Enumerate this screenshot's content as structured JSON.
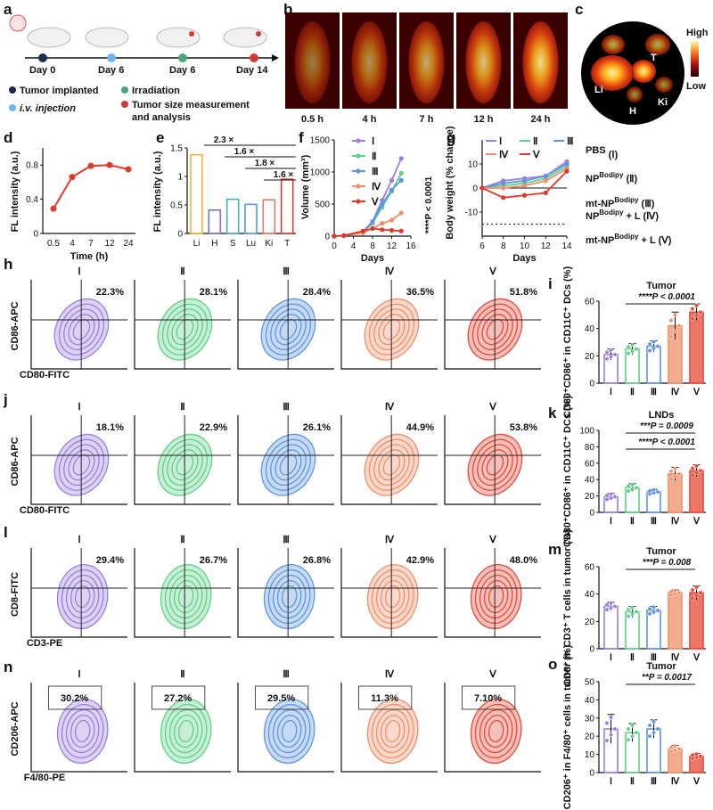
{
  "panels": {
    "a": {
      "letter": "a",
      "days": [
        "Day 0",
        "Day 6",
        "Day 6",
        "Day 14"
      ],
      "legend": [
        "Tumor implanted",
        "i.v. injection",
        "Irradiation",
        "Tumor size measurement",
        "and analysis"
      ],
      "colors": {
        "tumor": "#1e2b4a",
        "iv": "#6fb7e8",
        "irr": "#4aa67a",
        "meas": "#d23a3a"
      }
    },
    "b": {
      "letter": "b",
      "times": [
        "0.5 h",
        "4 h",
        "7 h",
        "12 h",
        "24 h"
      ]
    },
    "c": {
      "letter": "c",
      "organs": [
        "S",
        "Lu",
        "T",
        "Li",
        "H",
        "Ki"
      ]
    },
    "scale": {
      "high": "High",
      "low": "Low"
    },
    "legend_right": {
      "items": [
        {
          "base": "PBS",
          "sup": "",
          "tail": " (Ⅰ)"
        },
        {
          "base": "NP",
          "sup": "Bodipy",
          "tail": " (Ⅱ)"
        },
        {
          "base": "mt-NP",
          "sup": "Bodipy",
          "tail": " (Ⅲ)"
        },
        {
          "base": "NP",
          "sup": "Bodipy",
          "tail": " + L (Ⅳ)"
        },
        {
          "base": "mt-NP",
          "sup": "Bodipy",
          "tail": " + L (Ⅴ)"
        }
      ]
    },
    "flow_rows": [
      {
        "letter": "h",
        "ylabel": "CD86-APC",
        "xlabel": "CD80-FITC",
        "gate": "quad",
        "values": [
          "22.3%",
          "28.1%",
          "28.4%",
          "36.5%",
          "51.8%"
        ]
      },
      {
        "letter": "j",
        "ylabel": "CD86-APC",
        "xlabel": "CD80-FITC",
        "gate": "quad",
        "values": [
          "18.1%",
          "22.9%",
          "26.1%",
          "44.9%",
          "53.8%"
        ]
      },
      {
        "letter": "l",
        "ylabel": "CD8-FITC",
        "xlabel": "CD3-PE",
        "gate": "quad",
        "values": [
          "29.4%",
          "26.7%",
          "26.8%",
          "42.9%",
          "48.0%"
        ]
      },
      {
        "letter": "n",
        "ylabel": "CD206-APC",
        "xlabel": "F4/80-PE",
        "gate": "box",
        "values": [
          "30.2%",
          "27.2%",
          "29.5%",
          "11.3%",
          "7.10%"
        ]
      }
    ],
    "group_labels": [
      "Ⅰ",
      "Ⅱ",
      "Ⅲ",
      "Ⅳ",
      "Ⅴ"
    ],
    "group_colors": [
      "#9b7fe0",
      "#5fd08a",
      "#5f95e0",
      "#f0906a",
      "#e64a3a"
    ]
  },
  "chart_data": [
    {
      "id": "d",
      "type": "line",
      "title": "",
      "xlabel": "Time (h)",
      "ylabel": "FL intensity (a.u.)",
      "categories": [
        "0.5",
        "4",
        "7",
        "12",
        "24"
      ],
      "values": [
        0.29,
        0.66,
        0.79,
        0.8,
        0.75
      ],
      "ylim": [
        0,
        1.0
      ],
      "yticks": [
        0,
        0.4,
        0.8
      ],
      "color": "#e03a2a"
    },
    {
      "id": "e",
      "type": "bar",
      "xlabel": "",
      "ylabel": "FL intensity (a.u.)",
      "categories": [
        "Li",
        "H",
        "S",
        "Lu",
        "Ki",
        "T"
      ],
      "values": [
        1.38,
        0.41,
        0.6,
        0.51,
        0.59,
        0.95
      ],
      "ylim": [
        0,
        1.5
      ],
      "yticks": [
        0,
        0.5,
        1.0,
        1.5
      ],
      "colors": [
        "#f2b23a",
        "#7a72c8",
        "#45b6a0",
        "#5a9ad8",
        "#e07a6a",
        "#e03a2a"
      ],
      "annotations": [
        "2.3 ×",
        "1.6 ×",
        "1.8 ×",
        "1.6 ×"
      ]
    },
    {
      "id": "f",
      "type": "line",
      "xlabel": "Days",
      "ylabel": "Volume (mm³)",
      "x": [
        0,
        2,
        6,
        8,
        10,
        12,
        14
      ],
      "ylim": [
        0,
        1500
      ],
      "xlim": [
        0,
        16
      ],
      "yticks": [
        0,
        500,
        1000,
        1500
      ],
      "xticks": [
        0,
        4,
        8,
        12,
        16
      ],
      "annotation": "****P < 0.0001",
      "series": [
        {
          "name": "Ⅰ",
          "values": [
            0,
            10,
            70,
            230,
            560,
            870,
            1210
          ],
          "color": "#9b7fe0"
        },
        {
          "name": "Ⅱ",
          "values": [
            0,
            10,
            60,
            200,
            450,
            700,
            980
          ],
          "color": "#5fd08a"
        },
        {
          "name": "Ⅲ",
          "values": [
            0,
            10,
            65,
            220,
            500,
            720,
            870
          ],
          "color": "#5f95e0"
        },
        {
          "name": "Ⅳ",
          "values": [
            0,
            8,
            50,
            120,
            200,
            250,
            360
          ],
          "color": "#f0906a"
        },
        {
          "name": "Ⅴ",
          "values": [
            0,
            8,
            80,
            120,
            100,
            90,
            80
          ],
          "color": "#e03a2a"
        }
      ]
    },
    {
      "id": "g",
      "type": "line",
      "xlabel": "Days",
      "ylabel": "Body weight (% change)",
      "x": [
        6,
        8,
        10,
        12,
        14
      ],
      "ylim": [
        -20,
        20
      ],
      "xlim": [
        6,
        14
      ],
      "yticks": [
        -10,
        0,
        10
      ],
      "xticks": [
        6,
        8,
        10,
        12,
        14
      ],
      "dashed_line": -15,
      "series": [
        {
          "name": "Ⅰ",
          "values": [
            0,
            3,
            4,
            5,
            11
          ],
          "color": "#9b7fe0"
        },
        {
          "name": "Ⅱ",
          "values": [
            0,
            1,
            2,
            4,
            9
          ],
          "color": "#5fd08a"
        },
        {
          "name": "Ⅲ",
          "values": [
            0,
            2,
            3,
            5,
            10
          ],
          "color": "#5f95e0"
        },
        {
          "name": "Ⅳ",
          "values": [
            0,
            0,
            1,
            3,
            8
          ],
          "color": "#f0906a"
        },
        {
          "name": "Ⅴ",
          "values": [
            0,
            -4,
            -3,
            -2,
            7
          ],
          "color": "#e03a2a"
        }
      ]
    },
    {
      "id": "i",
      "type": "bar",
      "title": "Tumor",
      "ylabel": "CD80⁺CD86⁺ in CD11C⁺ DCs (%)",
      "categories": [
        "Ⅰ",
        "Ⅱ",
        "Ⅲ",
        "Ⅳ",
        "Ⅴ"
      ],
      "values": [
        21,
        25,
        27,
        42,
        52
      ],
      "errors": [
        4,
        4,
        4,
        10,
        6
      ],
      "ylim": [
        0,
        60
      ],
      "yticks": [
        0,
        20,
        40,
        60
      ],
      "annotations": [
        "****P < 0.0001"
      ]
    },
    {
      "id": "k",
      "type": "bar",
      "title": "LNDs",
      "ylabel": "CD80⁺CD86⁺ in CD11C⁺ DCs (%)",
      "categories": [
        "Ⅰ",
        "Ⅱ",
        "Ⅲ",
        "Ⅳ",
        "Ⅴ"
      ],
      "values": [
        19,
        30,
        25,
        47,
        51
      ],
      "errors": [
        4,
        5,
        3,
        8,
        7
      ],
      "ylim": [
        0,
        100
      ],
      "yticks": [
        0,
        20,
        40,
        60,
        80,
        100
      ],
      "annotations": [
        "***P = 0.0009",
        "****P < 0.0001"
      ]
    },
    {
      "id": "m",
      "type": "bar",
      "title": "Tumor",
      "ylabel": "CD8⁺ in CD3⁺ T cells in tumor (%)",
      "categories": [
        "Ⅰ",
        "Ⅱ",
        "Ⅲ",
        "Ⅳ",
        "Ⅴ"
      ],
      "values": [
        31,
        27,
        28,
        41,
        41
      ],
      "errors": [
        3,
        4,
        3,
        2,
        5
      ],
      "ylim": [
        0,
        60
      ],
      "yticks": [
        0,
        20,
        40,
        60
      ],
      "annotations": [
        "***P = 0.008"
      ]
    },
    {
      "id": "o",
      "type": "bar",
      "title": "Tumor",
      "ylabel": "CD206⁺ in F4/80⁺ cells in tumor (%)",
      "categories": [
        "Ⅰ",
        "Ⅱ",
        "Ⅲ",
        "Ⅳ",
        "Ⅴ"
      ],
      "values": [
        24,
        22,
        24,
        13,
        9
      ],
      "errors": [
        8,
        5,
        5,
        2,
        1.5
      ],
      "ylim": [
        0,
        50
      ],
      "yticks": [
        0,
        10,
        20,
        30,
        40,
        50
      ],
      "annotations": [
        "**P = 0.0017"
      ]
    }
  ]
}
